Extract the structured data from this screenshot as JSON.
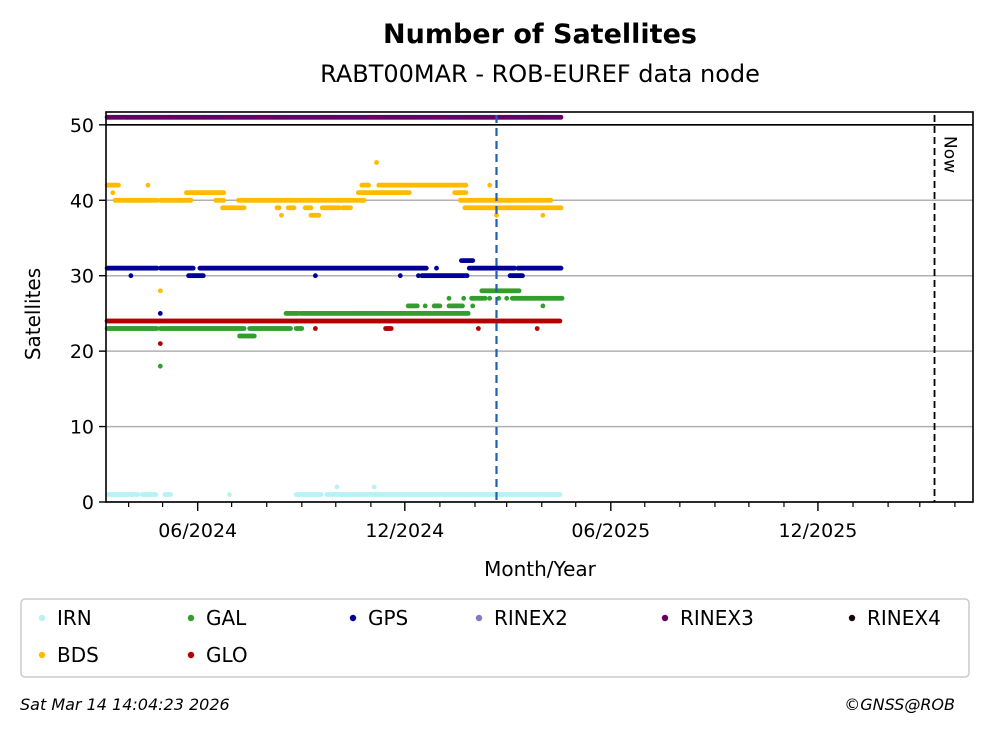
{
  "chart_data": {
    "type": "scatter",
    "title": "Number of Satellites",
    "subtitle": "RABT00MAR - ROB-EUREF data node",
    "xlabel": "Month/Year",
    "ylabel": "Satellites",
    "x_unit": "days since 2024-06-01",
    "xlim": [
      -81,
      685
    ],
    "ylim": [
      0,
      51.7
    ],
    "grid": "horizontal",
    "y_ticks": [
      0,
      10,
      20,
      30,
      40,
      50
    ],
    "x_major_ticks": [
      {
        "value": 0,
        "label": "06/2024"
      },
      {
        "value": 183,
        "label": "12/2024"
      },
      {
        "value": 365,
        "label": "06/2025"
      },
      {
        "value": 548,
        "label": "12/2025"
      }
    ],
    "x_minor_ticks": [
      -61,
      -31,
      30,
      61,
      92,
      122,
      153,
      214,
      245,
      273,
      304,
      334,
      395,
      426,
      457,
      487,
      518,
      579,
      610,
      638,
      669
    ],
    "limit_line_y": 50,
    "marker_line": {
      "value": 264,
      "color": "#1f5fb4"
    },
    "now_line": {
      "value": 651,
      "label": "Now"
    },
    "legend_position": "bottom",
    "series": [
      {
        "name": "IRN",
        "color": "#b8f2f5",
        "runs": [
          [
            -80,
            -53,
            1
          ],
          [
            -49,
            -37,
            1
          ],
          [
            -29,
            -24,
            1
          ],
          [
            28,
            28,
            1
          ],
          [
            87,
            109,
            1
          ],
          [
            114,
            143,
            1
          ],
          [
            145,
            320,
            1
          ],
          [
            123,
            123,
            2
          ],
          [
            156,
            156,
            2
          ]
        ]
      },
      {
        "name": "GAL",
        "color": "#339e2f",
        "runs": [
          [
            -80,
            -36,
            23
          ],
          [
            -33,
            -33,
            18
          ],
          [
            -33,
            41,
            23
          ],
          [
            37,
            50,
            22
          ],
          [
            46,
            82,
            23
          ],
          [
            87,
            92,
            23
          ],
          [
            78,
            89,
            25
          ],
          [
            91,
            239,
            25
          ],
          [
            186,
            194,
            26
          ],
          [
            201,
            201,
            26
          ],
          [
            209,
            214,
            26
          ],
          [
            222,
            234,
            26
          ],
          [
            243,
            243,
            26
          ],
          [
            305,
            305,
            26
          ],
          [
            222,
            222,
            27
          ],
          [
            235,
            235,
            27
          ],
          [
            242,
            254,
            27
          ],
          [
            258,
            258,
            27
          ],
          [
            266,
            266,
            27
          ],
          [
            273,
            273,
            27
          ],
          [
            278,
            322,
            27
          ],
          [
            251,
            284,
            28
          ]
        ]
      },
      {
        "name": "GPS",
        "color": "#000099",
        "runs": [
          [
            -80,
            -36,
            31
          ],
          [
            -59,
            -59,
            30
          ],
          [
            -33,
            -33,
            25
          ],
          [
            -33,
            -4,
            31
          ],
          [
            -8,
            5,
            30
          ],
          [
            2,
            202,
            31
          ],
          [
            104,
            104,
            30
          ],
          [
            179,
            179,
            30
          ],
          [
            195,
            195,
            30
          ],
          [
            198,
            238,
            30
          ],
          [
            211,
            211,
            31
          ],
          [
            233,
            243,
            32
          ],
          [
            240,
            280,
            31
          ],
          [
            276,
            287,
            30
          ],
          [
            283,
            321,
            31
          ]
        ]
      },
      {
        "name": "RINEX2",
        "color": "#8878c3",
        "runs": []
      },
      {
        "name": "RINEX3",
        "color": "#660066",
        "runs": [
          [
            -80,
            321,
            51
          ]
        ]
      },
      {
        "name": "RINEX4",
        "color": "#1a0010",
        "runs": []
      },
      {
        "name": "BDS",
        "color": "#ffbb00",
        "runs": [
          [
            -80,
            -70,
            42
          ],
          [
            -75,
            -75,
            41
          ],
          [
            -73,
            -36,
            40
          ],
          [
            -44,
            -44,
            42
          ],
          [
            -33,
            -33,
            28
          ],
          [
            -33,
            -6,
            40
          ],
          [
            -10,
            23,
            41
          ],
          [
            16,
            23,
            40
          ],
          [
            22,
            41,
            39
          ],
          [
            36,
            147,
            40
          ],
          [
            70,
            72,
            39
          ],
          [
            80,
            85,
            39
          ],
          [
            95,
            100,
            39
          ],
          [
            110,
            125,
            39
          ],
          [
            128,
            135,
            39
          ],
          [
            74,
            74,
            38
          ],
          [
            100,
            107,
            38
          ],
          [
            142,
            187,
            41
          ],
          [
            145,
            151,
            42
          ],
          [
            158,
            158,
            45
          ],
          [
            160,
            237,
            42
          ],
          [
            227,
            237,
            41
          ],
          [
            232,
            312,
            40
          ],
          [
            236,
            321,
            39
          ],
          [
            258,
            258,
            42
          ],
          [
            264,
            264,
            38
          ],
          [
            305,
            305,
            38
          ]
        ]
      },
      {
        "name": "GLO",
        "color": "#b30000",
        "runs": [
          [
            -80,
            320,
            24
          ],
          [
            -33,
            -33,
            21
          ],
          [
            104,
            104,
            23
          ],
          [
            166,
            171,
            23
          ],
          [
            248,
            248,
            23
          ],
          [
            300,
            300,
            23
          ]
        ]
      }
    ]
  },
  "footer": {
    "timestamp": "Sat Mar 14 14:04:23 2026",
    "copyright": "©GNSS@ROB"
  }
}
